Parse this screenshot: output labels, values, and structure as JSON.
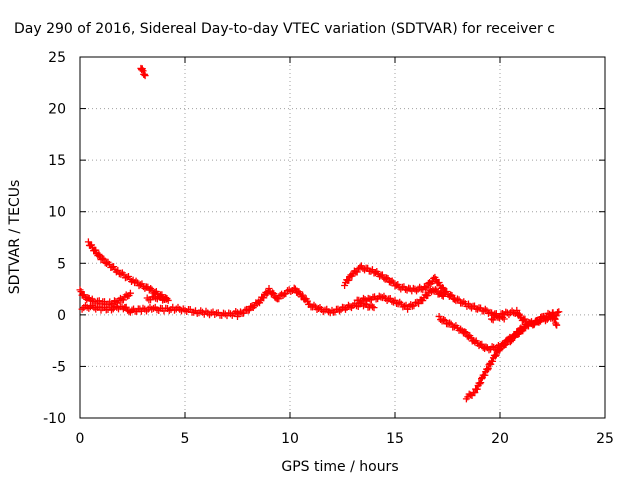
{
  "chart_data": {
    "type": "scatter",
    "title": "Day 290 of 2016, Sidereal Day-to-day VTEC variation (SDTVAR) for receiver c",
    "xlabel": "GPS time / hours",
    "ylabel": "SDTVAR / TECUs",
    "xlim": [
      0,
      25
    ],
    "ylim": [
      -10,
      25
    ],
    "xticks": [
      "0",
      "5",
      "10",
      "15",
      "20",
      "25"
    ],
    "yticks": [
      "-10",
      "-5",
      "0",
      "5",
      "10",
      "15",
      "20",
      "25"
    ],
    "grid": true,
    "marker": "+",
    "color": "#ff0000",
    "segments": [
      [
        [
          0.4,
          7.0
        ],
        [
          1.0,
          5.5
        ],
        [
          1.8,
          4.2
        ],
        [
          2.6,
          3.2
        ],
        [
          3.3,
          2.5
        ],
        [
          3.9,
          1.8
        ],
        [
          4.2,
          1.4
        ]
      ],
      [
        [
          0.0,
          2.3
        ],
        [
          0.2,
          1.8
        ],
        [
          0.5,
          1.4
        ],
        [
          1.0,
          1.2
        ],
        [
          1.5,
          1.1
        ],
        [
          2.0,
          1.5
        ],
        [
          2.4,
          2.1
        ]
      ],
      [
        [
          0.1,
          0.7
        ],
        [
          0.5,
          0.8
        ],
        [
          1.0,
          0.6
        ],
        [
          1.5,
          0.6
        ],
        [
          2.0,
          0.8
        ],
        [
          2.4,
          0.4
        ],
        [
          3.0,
          0.5
        ],
        [
          3.5,
          0.6
        ],
        [
          4.0,
          0.5
        ],
        [
          4.5,
          0.6
        ],
        [
          5.0,
          0.5
        ],
        [
          5.5,
          0.3
        ],
        [
          6.0,
          0.2
        ],
        [
          6.5,
          0.1
        ],
        [
          7.0,
          0.0
        ],
        [
          7.5,
          0.2
        ]
      ],
      [
        [
          3.2,
          1.5
        ],
        [
          3.6,
          1.7
        ],
        [
          4.1,
          1.5
        ]
      ],
      [
        [
          2.9,
          24.0
        ],
        [
          3.1,
          23.2
        ]
      ],
      [
        [
          7.5,
          0.0
        ],
        [
          8.0,
          0.5
        ],
        [
          8.5,
          1.2
        ],
        [
          9.0,
          2.4
        ],
        [
          9.4,
          1.6
        ],
        [
          9.8,
          2.2
        ],
        [
          10.2,
          2.5
        ],
        [
          10.6,
          1.8
        ],
        [
          11.0,
          0.9
        ],
        [
          11.5,
          0.5
        ],
        [
          12.0,
          0.3
        ],
        [
          12.5,
          0.6
        ],
        [
          13.0,
          0.9
        ],
        [
          13.5,
          1.0
        ],
        [
          14.0,
          0.7
        ]
      ],
      [
        [
          12.6,
          3.0
        ],
        [
          13.0,
          4.0
        ],
        [
          13.4,
          4.6
        ],
        [
          14.0,
          4.2
        ],
        [
          14.6,
          3.5
        ],
        [
          15.2,
          2.7
        ],
        [
          15.8,
          2.4
        ],
        [
          16.4,
          2.6
        ],
        [
          16.9,
          3.5
        ],
        [
          17.4,
          2.2
        ],
        [
          17.9,
          1.5
        ],
        [
          18.5,
          0.9
        ],
        [
          19.0,
          0.6
        ],
        [
          19.6,
          0.2
        ],
        [
          20.2,
          -0.4
        ]
      ],
      [
        [
          13.2,
          1.3
        ],
        [
          13.8,
          1.6
        ],
        [
          14.4,
          1.7
        ],
        [
          15.0,
          1.3
        ],
        [
          15.6,
          0.7
        ],
        [
          16.2,
          1.3
        ],
        [
          16.8,
          2.5
        ],
        [
          17.3,
          1.8
        ]
      ],
      [
        [
          17.1,
          -0.3
        ],
        [
          17.6,
          -0.9
        ],
        [
          18.2,
          -1.5
        ],
        [
          18.8,
          -2.6
        ],
        [
          19.4,
          -3.3
        ],
        [
          20.0,
          -3.1
        ],
        [
          20.5,
          -2.5
        ],
        [
          21.0,
          -1.3
        ],
        [
          21.5,
          -0.8
        ],
        [
          22.0,
          -0.5
        ],
        [
          22.5,
          -0.3
        ],
        [
          22.8,
          0.3
        ]
      ],
      [
        [
          18.4,
          -8.0
        ],
        [
          18.8,
          -7.5
        ],
        [
          19.2,
          -6.0
        ],
        [
          19.6,
          -4.5
        ],
        [
          20.0,
          -3.2
        ],
        [
          20.4,
          -2.4
        ],
        [
          20.8,
          -1.9
        ],
        [
          21.2,
          -1.2
        ]
      ],
      [
        [
          19.6,
          -0.4
        ],
        [
          20.2,
          0.1
        ],
        [
          20.8,
          0.3
        ],
        [
          21.0,
          -0.3
        ],
        [
          21.5,
          -1.0
        ],
        [
          22.0,
          -0.3
        ],
        [
          22.5,
          0.2
        ],
        [
          22.7,
          -1.0
        ]
      ]
    ]
  }
}
